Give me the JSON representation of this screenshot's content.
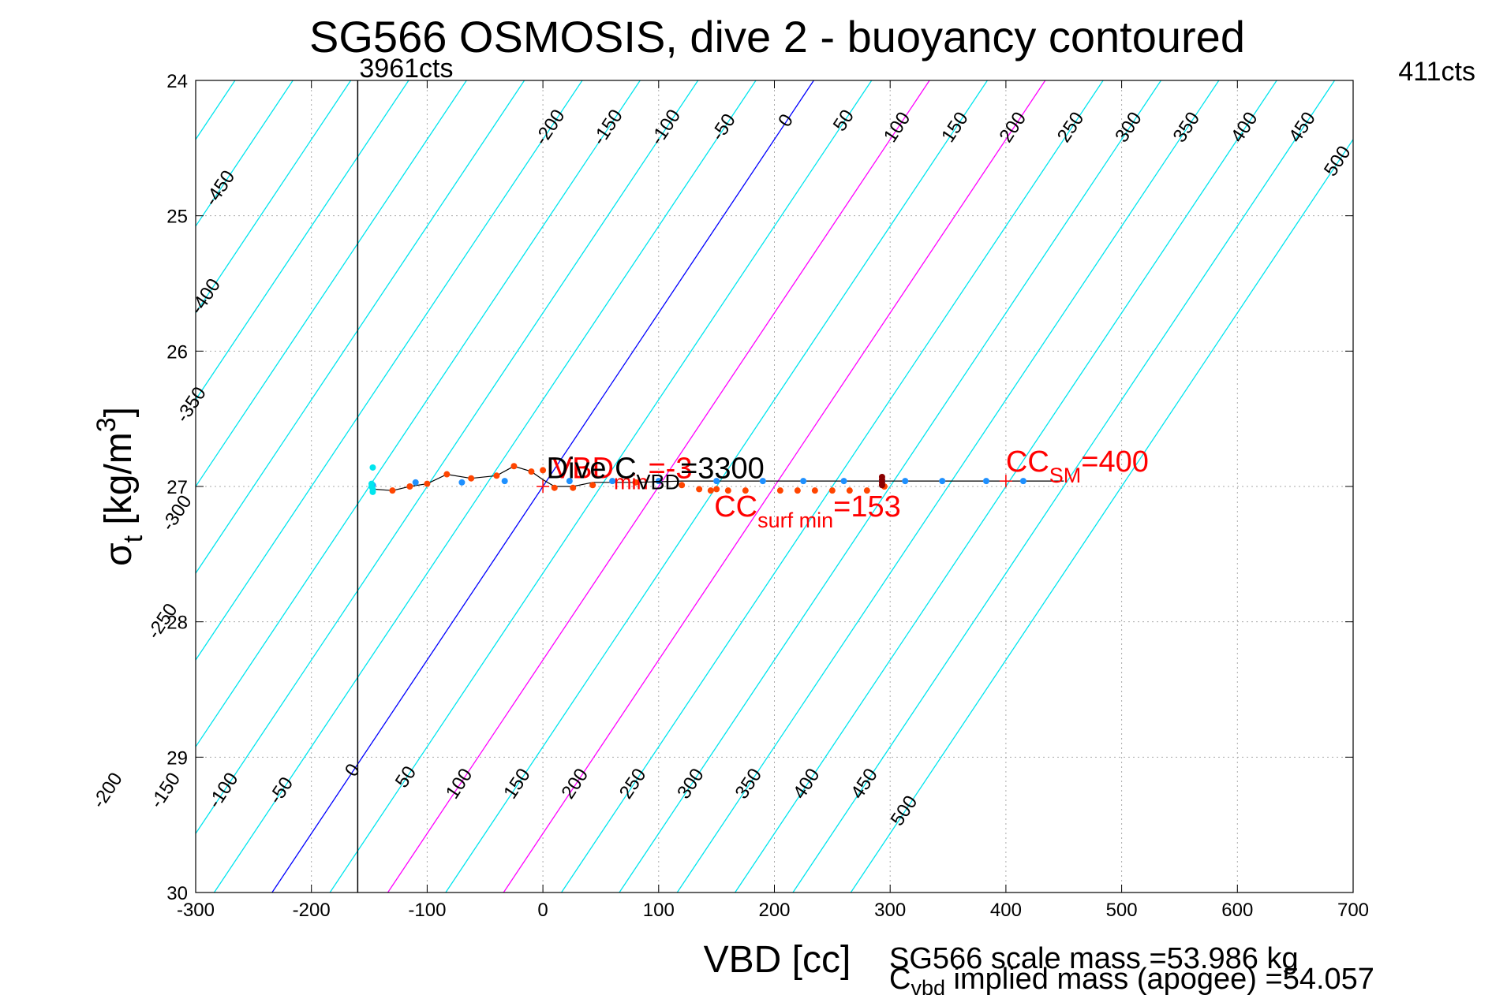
{
  "chart_data": {
    "type": "scatter",
    "title": "SG566 OSMOSIS, dive 2 - buoyancy contoured",
    "xlabel": "VBD [cc]",
    "ylabel": {
      "main": "σ",
      "sub": "t",
      "unit_pre": " [kg/m",
      "unit_sup": "3",
      "unit_post": "]"
    },
    "xlim": [
      -300,
      700
    ],
    "ylim": [
      30,
      24
    ],
    "grid": true,
    "x_ticks": [
      -300,
      -200,
      -100,
      0,
      100,
      200,
      300,
      400,
      500,
      600,
      700
    ],
    "y_ticks": [
      24,
      25,
      26,
      27,
      28,
      29,
      30
    ],
    "contours": {
      "slope_cc_per_kgm3": -78,
      "anchor_sigma": 27,
      "values": [
        -500,
        -450,
        -400,
        -350,
        -300,
        -250,
        -200,
        -150,
        -100,
        -50,
        0,
        50,
        100,
        150,
        200,
        250,
        300,
        350,
        400,
        450,
        500
      ],
      "colors": {
        "default": "#00e5ee",
        "zero": "#0000ff",
        "highlight": "#ff00ff"
      },
      "highlight_values": [
        100,
        200
      ],
      "top_labels": [
        {
          "value": -200,
          "text": "-200",
          "sigma": 24.35
        },
        {
          "value": -150,
          "text": "-150",
          "sigma": 24.35
        },
        {
          "value": -100,
          "text": "-100",
          "sigma": 24.35
        },
        {
          "value": -50,
          "text": "-50",
          "sigma": 24.35
        },
        {
          "value": 0,
          "text": "0",
          "sigma": 24.3
        },
        {
          "value": 50,
          "text": "50",
          "sigma": 24.3
        },
        {
          "value": 100,
          "text": "100",
          "sigma": 24.35
        },
        {
          "value": 150,
          "text": "150",
          "sigma": 24.35
        },
        {
          "value": 200,
          "text": "200",
          "sigma": 24.35
        },
        {
          "value": 250,
          "text": "250",
          "sigma": 24.35
        },
        {
          "value": 300,
          "text": "300",
          "sigma": 24.35
        },
        {
          "value": 350,
          "text": "350",
          "sigma": 24.35
        },
        {
          "value": 400,
          "text": "400",
          "sigma": 24.35
        },
        {
          "value": 450,
          "text": "450",
          "sigma": 24.35
        },
        {
          "value": 500,
          "text": "500",
          "sigma": 24.6
        }
      ],
      "left_labels": [
        {
          "value": -450,
          "text": "-450",
          "sigma": 24.8
        },
        {
          "value": -400,
          "text": "-400",
          "sigma": 25.6
        },
        {
          "value": -350,
          "text": "-350",
          "sigma": 26.4
        },
        {
          "value": -300,
          "text": "-300",
          "sigma": 27.2
        },
        {
          "value": -250,
          "text": "-250",
          "sigma": 28.0
        }
      ],
      "bottom_labels": [
        {
          "value": -200,
          "text": "-200",
          "sigma": 29.25
        },
        {
          "value": -150,
          "text": "-150",
          "sigma": 29.25
        },
        {
          "value": -100,
          "text": "-100",
          "sigma": 29.25
        },
        {
          "value": -50,
          "text": "-50",
          "sigma": 29.25
        },
        {
          "value": 0,
          "text": "0",
          "sigma": 29.1
        },
        {
          "value": 50,
          "text": "50",
          "sigma": 29.15
        },
        {
          "value": 100,
          "text": "100",
          "sigma": 29.2
        },
        {
          "value": 150,
          "text": "150",
          "sigma": 29.2
        },
        {
          "value": 200,
          "text": "200",
          "sigma": 29.2
        },
        {
          "value": 250,
          "text": "250",
          "sigma": 29.2
        },
        {
          "value": 300,
          "text": "300",
          "sigma": 29.2
        },
        {
          "value": 350,
          "text": "350",
          "sigma": 29.2
        },
        {
          "value": 400,
          "text": "400",
          "sigma": 29.2
        },
        {
          "value": 450,
          "text": "450",
          "sigma": 29.2
        },
        {
          "value": 500,
          "text": "500",
          "sigma": 29.4
        }
      ]
    },
    "vertical_line": {
      "x": -160,
      "label": "3961cts"
    },
    "right_top_label": "411cts",
    "series": [
      {
        "color": "#1e90ff",
        "x": [
          -147,
          -110,
          -70,
          -33,
          23,
          60,
          100,
          150,
          190,
          225,
          260,
          293,
          313,
          345,
          383,
          415
        ],
        "y": [
          26.99,
          26.97,
          26.97,
          26.96,
          26.96,
          26.96,
          26.96,
          26.96,
          26.96,
          26.96,
          26.96,
          26.96,
          26.96,
          26.96,
          26.96,
          26.96
        ]
      },
      {
        "color": "#00e5ee",
        "x": [
          -147,
          -148,
          -148,
          -147,
          -147
        ],
        "y": [
          26.86,
          26.98,
          27.0,
          27.02,
          27.04
        ]
      },
      {
        "color": "#ff4500",
        "x": [
          -130,
          -115,
          -100,
          -83,
          -62,
          -40,
          -25,
          -10,
          0,
          10,
          26,
          43,
          80,
          120,
          135,
          145,
          150,
          160,
          175,
          205,
          220,
          235,
          250,
          265,
          280,
          295
        ],
        "y": [
          27.03,
          27.0,
          26.98,
          26.91,
          26.94,
          26.92,
          26.85,
          26.89,
          26.88,
          27.01,
          27.01,
          26.99,
          26.97,
          26.99,
          27.02,
          27.03,
          27.02,
          27.03,
          27.03,
          27.03,
          27.03,
          27.03,
          27.03,
          27.03,
          27.03,
          27.0
        ]
      },
      {
        "color": "#8b0000",
        "x": [
          293,
          293,
          293,
          293
        ],
        "y": [
          26.93,
          26.95,
          26.97,
          26.99
        ]
      }
    ],
    "trace_line": {
      "color": "#000000",
      "x": [
        -147,
        -130,
        -115,
        -100,
        -83,
        -62,
        -40,
        -25,
        -10,
        0,
        10,
        26,
        43,
        80,
        120,
        150,
        190,
        260,
        293,
        345,
        415,
        450
      ],
      "y": [
        27.02,
        27.03,
        27.0,
        26.98,
        26.91,
        26.94,
        26.92,
        26.85,
        26.89,
        26.95,
        27.0,
        27.0,
        26.97,
        26.97,
        26.96,
        26.96,
        26.96,
        26.96,
        26.96,
        26.96,
        26.96,
        26.96
      ]
    },
    "markers": [
      {
        "x": 0,
        "y": 27.0,
        "color": "#ff0000"
      },
      {
        "x": 400,
        "y": 26.96,
        "color": "#ff0000"
      }
    ],
    "annotations": {
      "vbd": {
        "main": "VBD",
        "sub": "min",
        "tail": "=-3",
        "x": 8,
        "y": 26.87,
        "color": "#ff0000"
      },
      "dive_c": {
        "main": "Dive C",
        "sub": "VBD",
        "tail": "=3300",
        "x": 3,
        "y": 26.87,
        "color": "#000000"
      },
      "cc_surf": {
        "main": "CC",
        "sub": "surf min",
        "tail": "=153",
        "x": 148,
        "y": 27.15,
        "color": "#ff0000"
      },
      "cc_sm": {
        "main": "CC",
        "sub": "SM",
        "tail": "=400",
        "x": 400,
        "y": 26.82,
        "color": "#ff0000"
      }
    },
    "footer": {
      "line1": "SG566 scale mass =53.986 kg",
      "line2_main": "C",
      "line2_sub": "vbd",
      "line2_tail": " implied mass (apogee) =54.057"
    }
  }
}
